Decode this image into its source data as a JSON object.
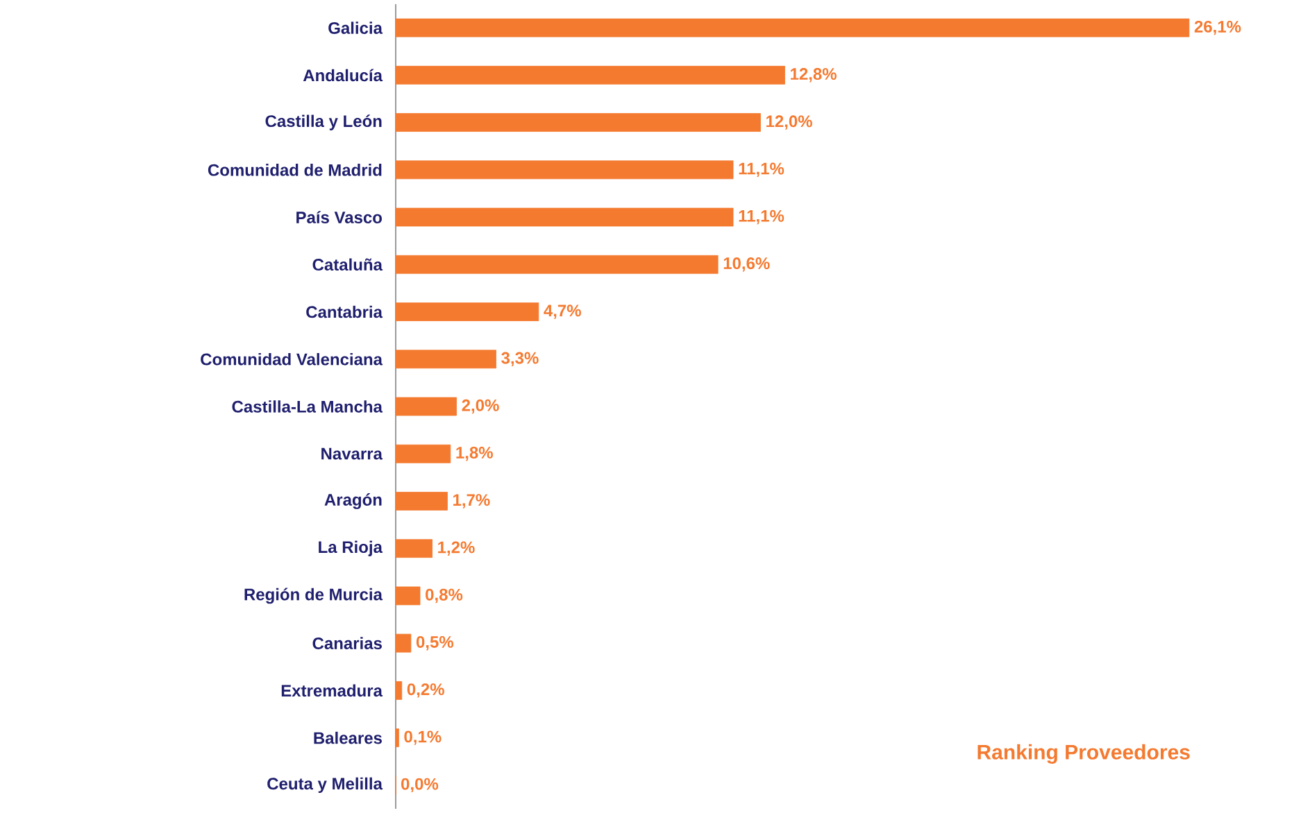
{
  "chart_data": {
    "type": "bar",
    "orientation": "horizontal",
    "title": "Ranking Proveedores",
    "categories": [
      "Galicia",
      "Andalucía",
      "Castilla y León",
      "Comunidad de Madrid",
      "País Vasco",
      "Cataluña",
      "Cantabria",
      "Comunidad Valenciana",
      "Castilla-La Mancha",
      "Navarra",
      "Aragón",
      "La Rioja",
      "Región de Murcia",
      "Canarias",
      "Extremadura",
      "Baleares",
      "Ceuta y Melilla"
    ],
    "values": [
      26.1,
      12.8,
      12.0,
      11.1,
      11.1,
      10.6,
      4.7,
      3.3,
      2.0,
      1.8,
      1.7,
      1.2,
      0.8,
      0.5,
      0.2,
      0.1,
      0.0
    ],
    "value_labels": [
      "26,1%",
      "12,8%",
      "12,0%",
      "11,1%",
      "11,1%",
      "10,6%",
      "4,7%",
      "3,3%",
      "2,0%",
      "1,8%",
      "1,7%",
      "1,2%",
      "0,8%",
      "0,5%",
      "0,2%",
      "0,1%",
      "0,0%"
    ],
    "color": "#f47a30"
  }
}
